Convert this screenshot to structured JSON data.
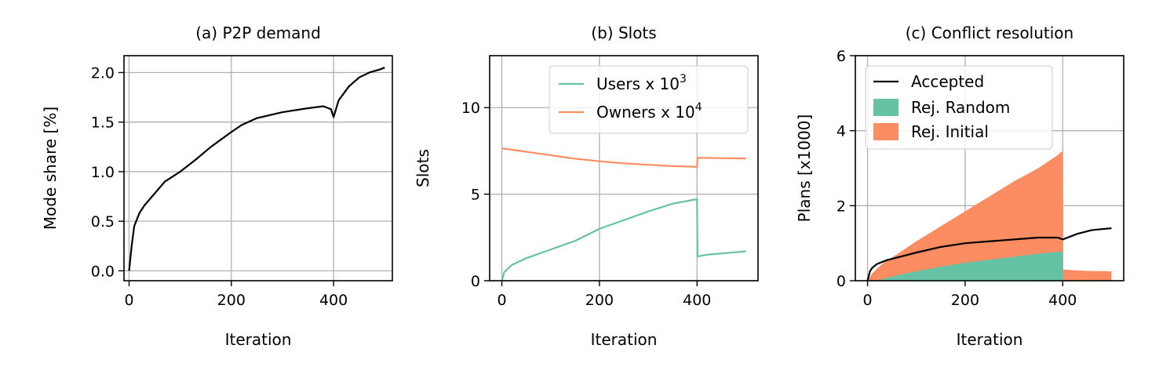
{
  "colors": {
    "accepted": "#000000",
    "users": "#66c2a5",
    "owners": "#fc8d62",
    "rej_random": "#66c2a5",
    "rej_initial": "#fc8d62"
  },
  "chart_data": [
    {
      "type": "line",
      "title": "(a) P2P demand",
      "xlabel": "Iteration",
      "ylabel": "Mode share [%]",
      "xlim": [
        -10,
        515
      ],
      "ylim": [
        -0.1,
        2.17
      ],
      "xticks": [
        0,
        200,
        400
      ],
      "xtick_labels": [
        "0",
        "200",
        "400"
      ],
      "yticks": [
        0,
        0.5,
        1.0,
        1.5,
        2.0
      ],
      "ytick_labels": [
        "0.0",
        "0.5",
        "1.0",
        "1.5",
        "2.0"
      ],
      "grid": true,
      "series": [
        {
          "color": "black",
          "x": [
            0,
            5,
            10,
            20,
            30,
            50,
            70,
            100,
            130,
            160,
            200,
            220,
            250,
            300,
            350,
            380,
            395,
            400,
            410,
            430,
            450,
            470,
            490,
            500
          ],
          "y": [
            0,
            0.25,
            0.45,
            0.58,
            0.66,
            0.78,
            0.9,
            1.0,
            1.12,
            1.25,
            1.4,
            1.47,
            1.54,
            1.6,
            1.64,
            1.66,
            1.63,
            1.55,
            1.72,
            1.86,
            1.95,
            2.0,
            2.03,
            2.05
          ]
        }
      ]
    },
    {
      "type": "line",
      "title": "(b) Slots",
      "xlabel": "Iteration",
      "ylabel": "Slots",
      "xlim": [
        -25,
        525
      ],
      "ylim": [
        0,
        13
      ],
      "xticks": [
        0,
        200,
        400
      ],
      "xtick_labels": [
        "0",
        "200",
        "400"
      ],
      "yticks": [
        0,
        5,
        10
      ],
      "ytick_labels": [
        "0",
        "5",
        "10"
      ],
      "grid": true,
      "legend": "top-right",
      "series": [
        {
          "name": "Users x 10",
          "sup": "3",
          "color": "#66c2a5",
          "x": [
            0,
            5,
            20,
            50,
            100,
            150,
            200,
            250,
            300,
            350,
            398,
            400,
            401,
            420,
            460,
            500
          ],
          "y": [
            0,
            0.5,
            0.9,
            1.3,
            1.8,
            2.3,
            3.0,
            3.5,
            4.0,
            4.45,
            4.7,
            4.7,
            1.4,
            1.5,
            1.6,
            1.7
          ]
        },
        {
          "name": "Owners x 10",
          "sup": "4",
          "color": "#fc8d62",
          "x": [
            0,
            50,
            100,
            150,
            200,
            250,
            300,
            350,
            398,
            400,
            401,
            450,
            500
          ],
          "y": [
            7.65,
            7.45,
            7.25,
            7.05,
            6.9,
            6.78,
            6.7,
            6.62,
            6.58,
            6.58,
            7.1,
            7.08,
            7.06
          ]
        }
      ]
    },
    {
      "type": "area",
      "title": "(c) Conflict resolution",
      "xlabel": "Iteration",
      "ylabel": "Plans [x1000]",
      "xlim": [
        -25,
        525
      ],
      "ylim": [
        0,
        6
      ],
      "xticks": [
        0,
        200,
        400
      ],
      "xtick_labels": [
        "0",
        "200",
        "400"
      ],
      "yticks": [
        0,
        2,
        4,
        6
      ],
      "ytick_labels": [
        "0",
        "2",
        "4",
        "6"
      ],
      "grid": true,
      "legend": "top-left",
      "series": [
        {
          "name": "Accepted",
          "kind": "line",
          "color": "black",
          "x": [
            0,
            5,
            10,
            20,
            40,
            70,
            100,
            150,
            200,
            250,
            300,
            350,
            390,
            400,
            410,
            430,
            460,
            500
          ],
          "y": [
            0,
            0.25,
            0.35,
            0.45,
            0.55,
            0.65,
            0.75,
            0.9,
            1.0,
            1.05,
            1.1,
            1.15,
            1.15,
            1.1,
            1.15,
            1.25,
            1.35,
            1.4
          ]
        },
        {
          "name": "Rej. Random",
          "kind": "fill",
          "color": "#66c2a5",
          "x": [
            0,
            20,
            40,
            80,
            120,
            160,
            200,
            250,
            300,
            350,
            398,
            400,
            401,
            500
          ],
          "y": [
            0,
            0.0,
            0.08,
            0.2,
            0.3,
            0.4,
            0.48,
            0.56,
            0.64,
            0.72,
            0.78,
            0.78,
            0,
            0
          ]
        },
        {
          "name": "Rej. Initial",
          "kind": "fill",
          "color": "#fc8d62",
          "x": [
            0,
            10,
            30,
            60,
            100,
            150,
            200,
            250,
            300,
            350,
            390,
            398,
            400,
            401,
            420,
            460,
            500
          ],
          "y": [
            0,
            0.2,
            0.45,
            0.7,
            1.05,
            1.45,
            1.85,
            2.25,
            2.65,
            3.0,
            3.35,
            3.45,
            3.4,
            0.3,
            0.28,
            0.26,
            0.25
          ]
        }
      ]
    }
  ]
}
